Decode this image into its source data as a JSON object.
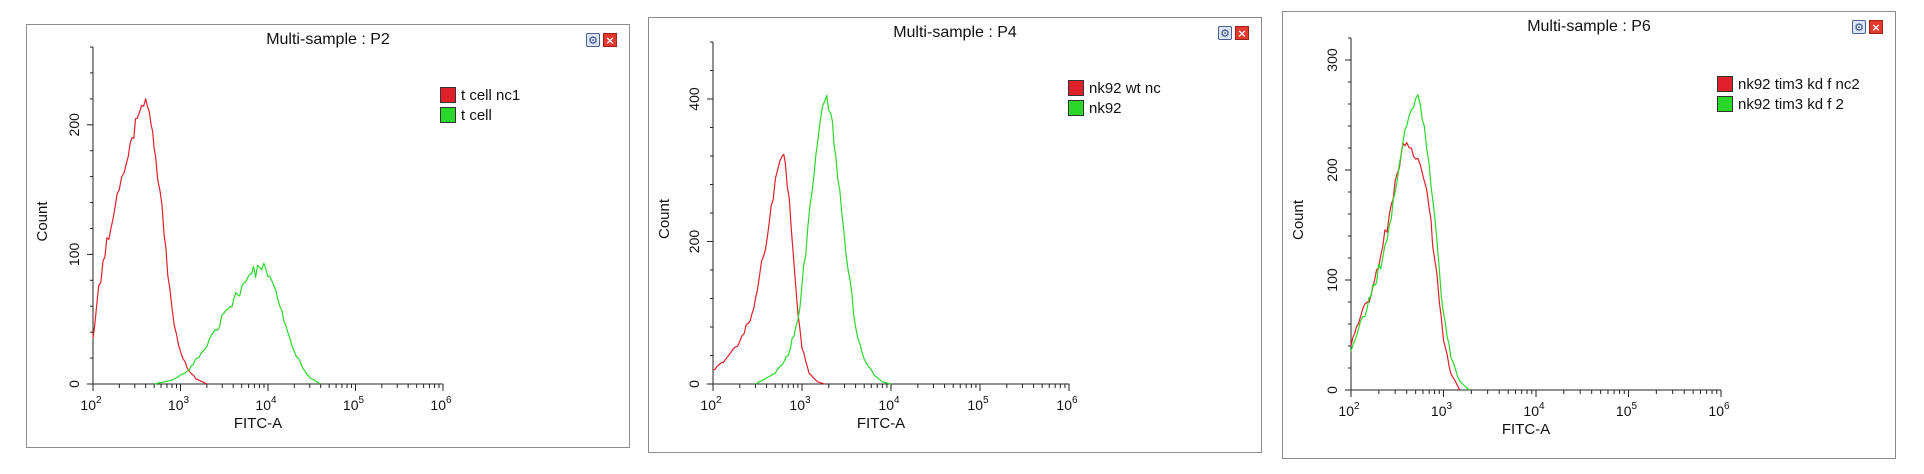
{
  "chart_data": [
    {
      "type": "line",
      "title": "Multi-sample : P2",
      "xlabel": "FITC-A",
      "ylabel": "Count",
      "xscale": "log",
      "xlim": [
        100,
        1000000
      ],
      "ylim": [
        0,
        260
      ],
      "yticks": [
        0,
        100,
        200
      ],
      "xtick_base": "10",
      "xtick_exponents": [
        "2",
        "3",
        "4",
        "5",
        "6"
      ],
      "legend_position": "top-right",
      "series": [
        {
          "name": "t cell nc1",
          "color": "#e0202a",
          "x": [
            100,
            110,
            130,
            160,
            200,
            240,
            280,
            320,
            360,
            400,
            440,
            480,
            520,
            580,
            650,
            750,
            850,
            1000,
            1200,
            1500,
            2000
          ],
          "y": [
            35,
            60,
            95,
            120,
            150,
            170,
            190,
            205,
            215,
            220,
            210,
            195,
            175,
            150,
            115,
            75,
            45,
            25,
            12,
            4,
            0
          ]
        },
        {
          "name": "t cell",
          "color": "#2ad82a",
          "x": [
            500,
            800,
            1200,
            1800,
            2500,
            3500,
            5000,
            6500,
            8000,
            9500,
            11000,
            13000,
            16000,
            20000,
            25000,
            30000,
            40000
          ],
          "y": [
            0,
            3,
            10,
            25,
            42,
            58,
            75,
            85,
            90,
            88,
            80,
            65,
            45,
            25,
            12,
            5,
            0
          ]
        }
      ]
    },
    {
      "type": "line",
      "title": "Multi-sample : P4",
      "xlabel": "FITC-A",
      "ylabel": "Count",
      "xscale": "log",
      "xlim": [
        100,
        1000000
      ],
      "ylim": [
        0,
        480
      ],
      "yticks": [
        0,
        200,
        400
      ],
      "xtick_base": "10",
      "xtick_exponents": [
        "2",
        "3",
        "4",
        "5",
        "6"
      ],
      "legend_position": "top-right",
      "series": [
        {
          "name": "nk92 wt nc",
          "color": "#e0202a",
          "x": [
            100,
            130,
            160,
            200,
            250,
            300,
            370,
            450,
            530,
            600,
            650,
            720,
            800,
            900,
            1000,
            1200,
            1500,
            1800
          ],
          "y": [
            20,
            30,
            45,
            60,
            85,
            120,
            180,
            250,
            300,
            320,
            310,
            260,
            180,
            100,
            50,
            15,
            3,
            0
          ]
        },
        {
          "name": "nk92",
          "color": "#2ad82a",
          "x": [
            300,
            500,
            700,
            900,
            1100,
            1300,
            1500,
            1700,
            1900,
            2100,
            2400,
            2800,
            3300,
            4000,
            5000,
            6500,
            8000,
            10000
          ],
          "y": [
            0,
            15,
            40,
            90,
            180,
            270,
            340,
            390,
            405,
            380,
            320,
            240,
            160,
            80,
            35,
            12,
            3,
            0
          ]
        }
      ]
    },
    {
      "type": "line",
      "title": "Multi-sample : P6",
      "xlabel": "FITC-A",
      "ylabel": "Count",
      "xscale": "log",
      "xlim": [
        100,
        1000000
      ],
      "ylim": [
        0,
        320
      ],
      "yticks": [
        0,
        100,
        200,
        300
      ],
      "xtick_base": "10",
      "xtick_exponents": [
        "2",
        "3",
        "4",
        "5",
        "6"
      ],
      "legend_position": "top-right",
      "series": [
        {
          "name": "nk92 tim3 kd f nc2",
          "color": "#e0202a",
          "x": [
            100,
            120,
            150,
            180,
            220,
            260,
            300,
            350,
            400,
            450,
            500,
            560,
            620,
            700,
            800,
            900,
            1000,
            1200,
            1500
          ],
          "y": [
            40,
            60,
            80,
            100,
            130,
            160,
            190,
            215,
            225,
            220,
            210,
            205,
            190,
            165,
            120,
            80,
            45,
            15,
            0
          ]
        },
        {
          "name": "nk92 tim3 kd f 2",
          "color": "#2ad82a",
          "x": [
            100,
            120,
            150,
            180,
            220,
            260,
            300,
            350,
            400,
            450,
            500,
            560,
            620,
            700,
            800,
            900,
            1000,
            1200,
            1500,
            1900
          ],
          "y": [
            35,
            55,
            75,
            95,
            120,
            150,
            180,
            215,
            240,
            255,
            265,
            260,
            240,
            205,
            160,
            110,
            70,
            30,
            8,
            0
          ]
        }
      ]
    }
  ]
}
